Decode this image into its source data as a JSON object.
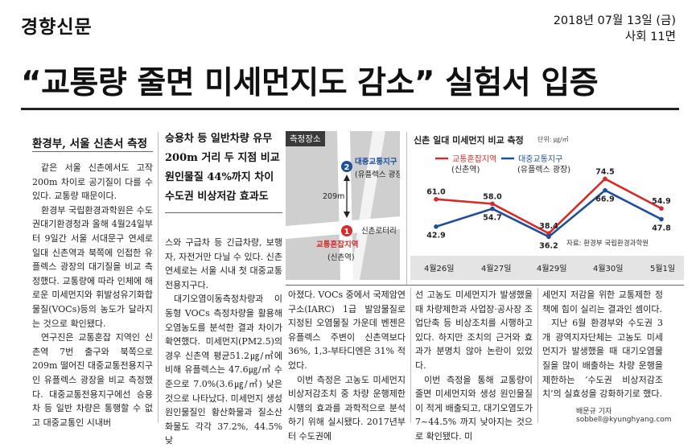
{
  "masthead": "경향신문",
  "date": "2018년 07월 13일 (금)",
  "section": "사회 11면",
  "headline": "“교통량 줄면 미세먼지도 감소” 실험서 입증",
  "subheads": {
    "left": "환경부, 서울 신촌서 측정",
    "right": [
      "승용차 등 일반차량 유무",
      "200m 거리 두 지점 비교",
      "원인물질 44%까지 차이",
      "수도권 비상저감 효과도"
    ]
  },
  "body": {
    "col1": "같은 서울 신촌에서도 고작 200m 차이로 공기질이 다를 수 있다. 교통량 때문이다.",
    "col1b": "환경부 국립환경과학원은 수도권대기환경청과 올해 4월24일부터 9일간 서울 서대문구 연세로 일대 신촌역과 북쪽에 인접한 유플렉스 광장의 대기질을 비교 측정했다. 교통량에 따라 인체에 해로운 미세먼지와 휘발성유기화합물질(VOCs)등의 농도가 달라지는 것으로 확인됐다.",
    "col1c": "연구진은 교통혼잡 지역인 신촌역 7번 출구와 북쪽으로 209m 떨어진 대중교통전용지구인 유플렉스 광장을 비교 측정했다. 대중교통전용지구에선 승용차 등 일반 차량은 통행할 수 없고 대중교통인 시내버",
    "col2": "스와 구급차 등 긴급차량, 보행자, 자전거만 다닐 수 있다. 신촌 연세로는 서울 시내 첫 대중교통전용지구다.",
    "col2b": "대기오염이동측정차량과 이동형 VOCs 측정차량을 활용해 오염농도를 분석한 결과 차이가 확연했다. 미세먼지(PM2.5)의 경우 신촌역 평균51.2㎍/㎥에 비해 유플렉스는 47.6㎍/㎥ 수준으로 7.0%(3.6㎍/㎥) 낮은 것으로 나타났다. 미세먼지 생성 원인물질인 황산화물과 질소산화물도 각각 37.2%, 44.5% 낮",
    "col3": "아졌다. VOCs 중에서 국제암연구소(IARC) 1급 발암물질로 지정된 오염물질 가운데 벤젠은 유플렉스 주변이 신촌역보다 36%, 1,3-부타디엔은 31% 적었다.",
    "col3b": "이번 측정은 고농도 미세먼지 비상저감조치 중 차량 운행제한 시행의 효과를 과학적으로 분석하기 위해 실시됐다. 2017년부터 수도권에",
    "col4": "선 고농도 미세먼지가 발생했을 때 차량제한과 사업장·공사장 조업단축 등 비상조치를 시행하고 있다. 하지만 조치의 근거와 효과가 분명치 않아 논란이 있었다.",
    "col4b": "이번 측정을 통해 교통량이 줄면 미세먼지와 생성 원인물질이 적게 배출되고, 대기오염도가 7~44.5% 까지 낮아지는 것으로 확인됐다. 미",
    "col5": "세먼지 저감을 위한 교통제한 정책에 힘이 실리는 결과인 셈이다.",
    "col5b": "지난 6월 환경부와 수도권 3개 광역지자단체는 고농도 미세먼지가 발생했을 때 대기오염물질을 많이 배출하는 차량 운행을 제한하는 ‘수도권 비상저감조치’의 실효성을 강화하기로 했다.",
    "byline": "배문규 기자 sobbell@kyunghyang.com"
  },
  "map": {
    "tag": "측정장소",
    "point2_num": "2",
    "point2_name": "대중교통지구",
    "point2_sub": "(유플렉스 광장)",
    "distance": "209m",
    "point1_num": "1",
    "point1_name": "교통혼잡지역",
    "point1_sub": "(신촌역)",
    "rotary": "신촌로터리",
    "colors": {
      "point1": "#d42b2b",
      "point2": "#1d4f9c",
      "road": "#ffffff",
      "bg": "#cfcfcf"
    }
  },
  "chart_data": {
    "type": "line",
    "title": "신촌 일대 미세먼지 비교 측정",
    "unit": "단위: ㎍/㎥",
    "categories": [
      "4월26일",
      "4월27일",
      "4월29일",
      "4월30일",
      "5월1일"
    ],
    "series": [
      {
        "name": "교통혼잡지역",
        "sub": "(신촌역)",
        "color": "#d42b2b",
        "values": [
          61.0,
          58.0,
          38.4,
          74.5,
          54.9
        ],
        "labels": [
          "61.0",
          "58.0",
          "38.4",
          "74.5",
          "54.9"
        ]
      },
      {
        "name": "대중교통지구",
        "sub": "(유플렉스 광장)",
        "color": "#1d4f9c",
        "values": [
          42.9,
          54.7,
          36.2,
          66.9,
          47.8
        ],
        "labels": [
          "42.9",
          "54.7",
          "36.2",
          "66.9",
          "47.8"
        ]
      }
    ],
    "ylim": [
      30,
      80
    ],
    "source": "자료: 환경부 국립환경과학원",
    "grid": false,
    "legend": "top"
  }
}
